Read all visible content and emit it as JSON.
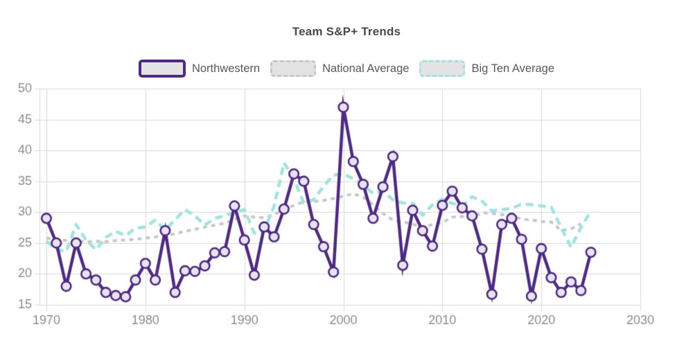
{
  "title": "Team S&P+ Trends",
  "legend": {
    "swatch_fill": "#E3E3E3",
    "items": [
      {
        "label": "Northwestern",
        "color": "#4E2A84",
        "style": "solid"
      },
      {
        "label": "National Average",
        "color": "#C7C7C7",
        "style": "dashed"
      },
      {
        "label": "Big Ten Average",
        "color": "#9FE4E0",
        "style": "dashed"
      }
    ]
  },
  "colors": {
    "background": "#FFFFFF",
    "grid": "#D9D9D9",
    "tick_label": "#8C8C8C",
    "title_text": "#4A4A4A",
    "legend_text": "#585858",
    "marker_fill": "#E8E4EF"
  },
  "chart_data": {
    "type": "line",
    "title": "Team S&P+ Trends",
    "xlabel": "",
    "ylabel": "",
    "grid": true,
    "legend_position": "top",
    "xlim": [
      1969.3,
      2030
    ],
    "ylim": [
      15,
      50
    ],
    "x_ticks": [
      1970,
      1980,
      1990,
      2000,
      2010,
      2020,
      2030
    ],
    "y_ticks": [
      15,
      20,
      25,
      30,
      35,
      40,
      45,
      50
    ],
    "x": [
      1970,
      1971,
      1972,
      1973,
      1974,
      1975,
      1976,
      1977,
      1978,
      1979,
      1980,
      1981,
      1982,
      1983,
      1984,
      1985,
      1986,
      1987,
      1988,
      1989,
      1990,
      1991,
      1992,
      1993,
      1994,
      1995,
      1996,
      1997,
      1998,
      1999,
      2000,
      2001,
      2002,
      2003,
      2004,
      2005,
      2006,
      2007,
      2008,
      2009,
      2010,
      2011,
      2012,
      2013,
      2014,
      2015,
      2016,
      2017,
      2018,
      2019,
      2020,
      2021,
      2022,
      2023,
      2024,
      2025
    ],
    "series": [
      {
        "name": "Northwestern",
        "color": "#4E2A84",
        "line": "solid",
        "width": 4.5,
        "markers": true,
        "values": [
          29,
          25,
          18,
          25,
          20,
          19,
          17,
          16.5,
          16.3,
          19,
          21.7,
          19,
          27,
          17,
          20.5,
          20.4,
          21.3,
          23.4,
          23.6,
          31,
          25.5,
          19.8,
          27.6,
          26,
          30.5,
          36.2,
          35,
          28,
          24.4,
          20.3,
          47,
          38.2,
          34.5,
          29,
          34.1,
          39,
          21.4,
          30.3,
          27,
          24.5,
          31.1,
          33.4,
          30.7,
          29.4,
          24,
          16.7,
          28,
          29,
          25.6,
          16.4,
          24.1,
          19.4,
          17,
          18.7,
          17.3,
          23.5
        ]
      },
      {
        "name": "National Average",
        "color": "#C7C7C7",
        "line": "dashed",
        "dash": [
          6,
          6
        ],
        "width": 4,
        "markers": false,
        "values": [
          25.8,
          25.6,
          25.4,
          25.3,
          25.2,
          25.3,
          25.2,
          25.4,
          25.5,
          25.6,
          25.8,
          26,
          26.2,
          26.5,
          26.9,
          27.2,
          27.6,
          27.9,
          28.2,
          28.8,
          29.4,
          29.2,
          29.1,
          29.6,
          30.4,
          31.1,
          31.7,
          31.7,
          31.9,
          32.2,
          32.6,
          33,
          32.4,
          31.2,
          29.8,
          28.7,
          28.4,
          28.1,
          27.5,
          28,
          28.3,
          29.2,
          29.3,
          29.1,
          29.9,
          29.8,
          29.6,
          29.4,
          28.9,
          28.7,
          28.5,
          28.4,
          27,
          27.3,
          28.1,
          null
        ]
      },
      {
        "name": "Big Ten Average",
        "color": "#9FE4E0",
        "line": "dashed",
        "dash": [
          11,
          7
        ],
        "width": 4.5,
        "markers": false,
        "values": [
          25.3,
          24,
          23.6,
          28,
          25.5,
          23.9,
          25.9,
          26.9,
          26.2,
          27.4,
          27.6,
          28.7,
          27.1,
          28.8,
          30.4,
          29.4,
          27.9,
          29,
          29.4,
          30,
          30.4,
          26.6,
          27,
          31,
          38,
          35.4,
          31.5,
          32,
          34.2,
          36,
          36.2,
          35.4,
          34.4,
          33,
          33.4,
          32,
          31.5,
          31.4,
          29.5,
          31.2,
          32.1,
          31.4,
          31,
          32.5,
          31.8,
          30.2,
          30.4,
          30.6,
          31.3,
          31.2,
          31,
          30.8,
          27.5,
          24.3,
          27.5,
          30.2
        ]
      }
    ]
  }
}
